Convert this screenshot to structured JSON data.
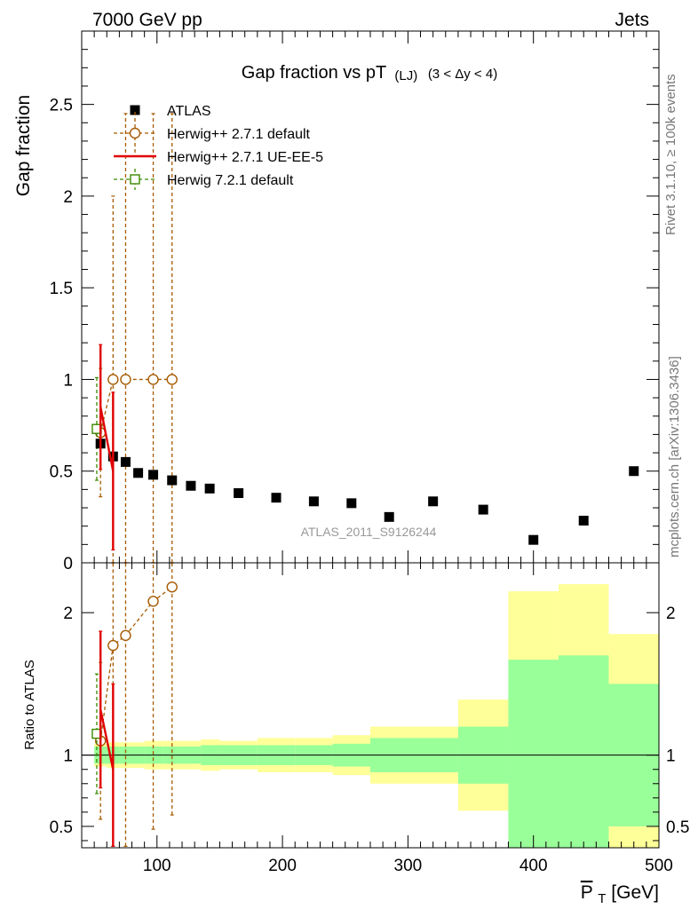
{
  "header": {
    "left": "7000 GeV pp",
    "right": "Jets"
  },
  "side_labels": {
    "rivet": "Rivet 3.1.10, ≥ 100k events",
    "mcplots": "mcplots.cern.ch [arXiv:1306.3436]"
  },
  "chart_data": {
    "type": "scatter",
    "title_main": "Gap fraction vs pT",
    "title_sub1": "(LJ)",
    "title_sub2": "(3 < Δy < 4)",
    "watermark": "ATLAS_2011_S9126244",
    "xlabel_main": "P",
    "xlabel_sub": "T",
    "xlabel_unit": " [GeV]",
    "ylabel_top": "Gap fraction",
    "ylabel_bottom": "Ratio to ATLAS",
    "xlim": [
      40,
      500
    ],
    "ylim_top": [
      0,
      2.9
    ],
    "ylim_bottom": [
      0.35,
      2.35
    ],
    "x_ticks": [
      {
        "value": 100,
        "label": "100"
      },
      {
        "value": 200,
        "label": "200"
      },
      {
        "value": 300,
        "label": "300"
      },
      {
        "value": 400,
        "label": "400"
      },
      {
        "value": 500,
        "label": "500"
      }
    ],
    "y_ticks_top": [
      {
        "value": 0,
        "label": "0"
      },
      {
        "value": 0.5,
        "label": "0.5"
      },
      {
        "value": 1,
        "label": "1"
      },
      {
        "value": 1.5,
        "label": "1.5"
      },
      {
        "value": 2,
        "label": "2"
      },
      {
        "value": 2.5,
        "label": "2.5"
      }
    ],
    "y_ticks_bottom": [
      {
        "value": 0.5,
        "label": "0.5"
      },
      {
        "value": 1,
        "label": "1"
      },
      {
        "value": 2,
        "label": "2"
      }
    ],
    "legend": [
      {
        "name": "ATLAS",
        "color": "#000000",
        "marker": "filled-square"
      },
      {
        "name": "Herwig++ 2.7.1 default",
        "color": "#a65a00",
        "marker": "open-circle",
        "dashed": true
      },
      {
        "name": "Herwig++ 2.7.1 UE-EE-5",
        "color": "#e00000",
        "marker": "line"
      },
      {
        "name": "Herwig 7.2.1 default",
        "color": "#3a8a00",
        "marker": "open-square",
        "dashed": true
      }
    ],
    "atlas": {
      "x": [
        55,
        65,
        75,
        85,
        97,
        112,
        127,
        142,
        165,
        195,
        225,
        255,
        285,
        320,
        360,
        400,
        440,
        480
      ],
      "y": [
        0.65,
        0.58,
        0.55,
        0.49,
        0.48,
        0.45,
        0.42,
        0.405,
        0.38,
        0.355,
        0.335,
        0.325,
        0.25,
        0.335,
        0.29,
        0.125,
        0.23,
        0.5
      ]
    },
    "herwigpp_default": {
      "color": "#a65a00",
      "x": [
        55,
        65,
        75,
        97,
        112
      ],
      "y": [
        0.71,
        1.0,
        1.0,
        1.0,
        1.0
      ],
      "err": [
        0.35,
        1.0,
        1.45,
        1.45,
        1.45
      ],
      "ratio": [
        1.1,
        1.77,
        1.84,
        2.08,
        2.18
      ],
      "ratio_err": [
        0.55,
        1.6,
        1.6,
        1.6,
        1.6
      ]
    },
    "herwigpp_ueee5": {
      "color": "#e00000",
      "x": [
        55,
        65
      ],
      "y": [
        0.85,
        0.5
      ],
      "err": [
        0.34,
        0.43
      ],
      "ratio": [
        1.32,
        0.9
      ],
      "ratio_err": [
        0.55,
        0.6
      ]
    },
    "herwig7_default": {
      "color": "#3a8a00",
      "x": [
        52
      ],
      "y": [
        0.73
      ],
      "err": [
        0.28
      ],
      "ratio": [
        1.15
      ],
      "ratio_err": [
        0.42
      ]
    },
    "ratio_bands": {
      "yellow_color": "#ffff99",
      "green_color": "#99ff99",
      "bins": [
        {
          "lo": 50,
          "hi": 60,
          "inner": 0.06,
          "outer": 0.08
        },
        {
          "lo": 60,
          "hi": 70,
          "inner": 0.06,
          "outer": 0.09
        },
        {
          "lo": 70,
          "hi": 80,
          "inner": 0.06,
          "outer": 0.09
        },
        {
          "lo": 80,
          "hi": 90,
          "inner": 0.06,
          "outer": 0.09
        },
        {
          "lo": 90,
          "hi": 105,
          "inner": 0.06,
          "outer": 0.1
        },
        {
          "lo": 105,
          "hi": 120,
          "inner": 0.06,
          "outer": 0.1
        },
        {
          "lo": 120,
          "hi": 135,
          "inner": 0.06,
          "outer": 0.1
        },
        {
          "lo": 135,
          "hi": 150,
          "inner": 0.07,
          "outer": 0.11
        },
        {
          "lo": 150,
          "hi": 180,
          "inner": 0.07,
          "outer": 0.1
        },
        {
          "lo": 180,
          "hi": 210,
          "inner": 0.07,
          "outer": 0.12
        },
        {
          "lo": 210,
          "hi": 240,
          "inner": 0.07,
          "outer": 0.12
        },
        {
          "lo": 240,
          "hi": 270,
          "inner": 0.08,
          "outer": 0.14
        },
        {
          "lo": 270,
          "hi": 340,
          "inner": 0.12,
          "outer": 0.2
        },
        {
          "lo": 340,
          "hi": 380,
          "inner": 0.2,
          "outer": 0.39
        },
        {
          "lo": 380,
          "hi": 420,
          "inner": 0.67,
          "outer": 1.15
        },
        {
          "lo": 420,
          "hi": 460,
          "inner": 0.7,
          "outer": 1.2
        },
        {
          "lo": 460,
          "hi": 500,
          "inner": 0.5,
          "outer": 0.85
        }
      ]
    }
  }
}
